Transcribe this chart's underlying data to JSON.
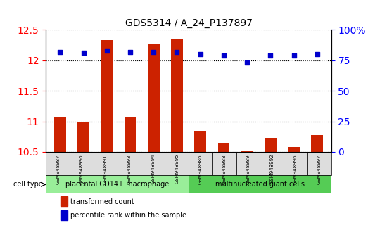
{
  "title": "GDS5314 / A_24_P137897",
  "samples": [
    "GSM948987",
    "GSM948990",
    "GSM948991",
    "GSM948993",
    "GSM948994",
    "GSM948995",
    "GSM948986",
    "GSM948988",
    "GSM948989",
    "GSM948992",
    "GSM948996",
    "GSM948997"
  ],
  "transformed_count": [
    11.08,
    11.0,
    12.33,
    11.08,
    12.28,
    12.35,
    10.85,
    10.65,
    10.52,
    10.73,
    10.58,
    10.78
  ],
  "percentile_rank": [
    82,
    81,
    83,
    82,
    82,
    82,
    80,
    79,
    73,
    79,
    79,
    80
  ],
  "group1_label": "placental CD14+ macrophage",
  "group2_label": "multinucleated giant cells",
  "group1_count": 6,
  "group2_count": 6,
  "ylim_left": [
    10.5,
    12.5
  ],
  "ylim_right": [
    0,
    100
  ],
  "yticks_left": [
    10.5,
    11.0,
    11.5,
    12.0,
    12.5
  ],
  "yticks_right": [
    0,
    25,
    50,
    75,
    100
  ],
  "bar_color": "#cc2200",
  "dot_color": "#0000cc",
  "group1_bg": "#99ee99",
  "group2_bg": "#55cc55",
  "label_bg": "#dddddd",
  "legend_bar_label": "transformed count",
  "legend_dot_label": "percentile rank within the sample",
  "cell_type_label": "cell type"
}
